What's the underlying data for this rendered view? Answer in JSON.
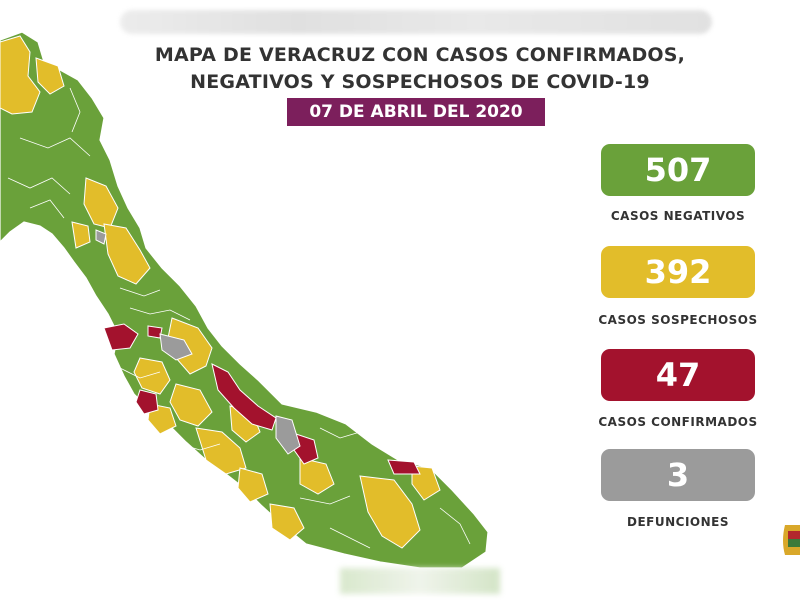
{
  "title": {
    "line1": "MAPA DE VERACRUZ CON CASOS CONFIRMADOS,",
    "line2": "NEGATIVOS Y SOSPECHOSOS DE COVID-19"
  },
  "date": "07 DE ABRIL DEL 2020",
  "stats": [
    {
      "value": "507",
      "label": "CASOS NEGATIVOS",
      "color": "#6aa13a"
    },
    {
      "value": "392",
      "label": "CASOS SOSPECHOSOS",
      "color": "#e2bd2a"
    },
    {
      "value": "47",
      "label": "CASOS CONFIRMADOS",
      "color": "#a3122d"
    },
    {
      "value": "3",
      "label": "DEFUNCIONES",
      "color": "#9b9b9b"
    }
  ],
  "legend_colors": {
    "negative": "#6aa13a",
    "suspected": "#e2bd2a",
    "confirmed": "#a3122d",
    "deaths": "#9b9b9b"
  },
  "map_icon": "veracruz-state-map",
  "emblem_icon": "state-emblem-icon"
}
